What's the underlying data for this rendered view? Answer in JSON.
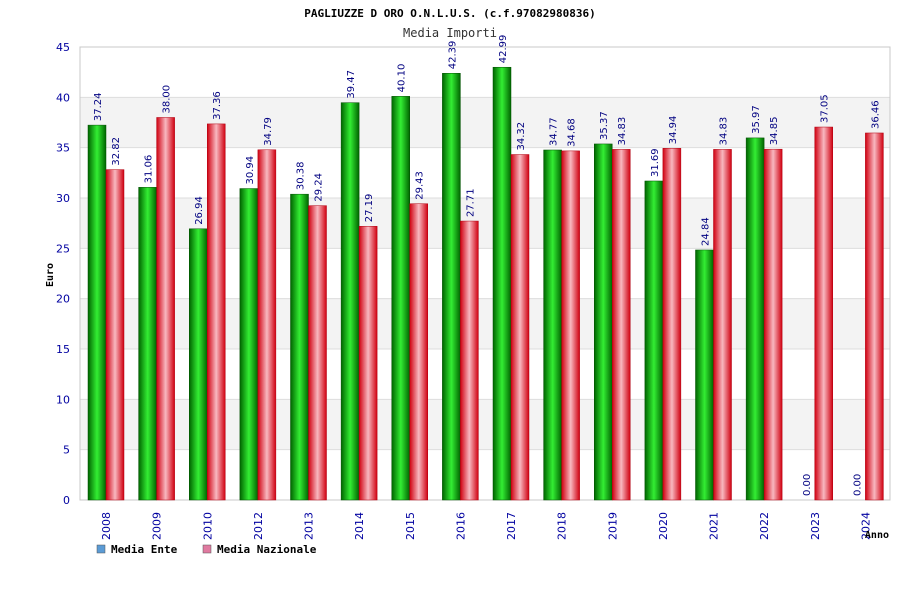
{
  "chart_data": {
    "type": "bar",
    "title": "PAGLIUZZE D ORO O.N.L.U.S. (c.f.97082980836)",
    "subtitle": "Media Importi",
    "xlabel": "Anno",
    "ylabel": "Euro",
    "ylim": [
      0,
      45
    ],
    "yticks": [
      0,
      5,
      10,
      15,
      20,
      25,
      30,
      35,
      40,
      45
    ],
    "grid": "horizontal bands",
    "legend_position": "bottom-left",
    "categories": [
      "2008",
      "2009",
      "2010",
      "2012",
      "2013",
      "2014",
      "2015",
      "2016",
      "2017",
      "2018",
      "2019",
      "2020",
      "2021",
      "2022",
      "2023",
      "2024"
    ],
    "series": [
      {
        "name": "Media Ente",
        "color": "#00b000",
        "legend_color": "#5b9bd5",
        "values": [
          37.24,
          31.06,
          26.94,
          30.94,
          30.38,
          39.47,
          40.1,
          42.39,
          42.99,
          34.77,
          35.37,
          31.69,
          24.84,
          35.97,
          0.0,
          0.0
        ],
        "labels": [
          "37.24",
          "31.06",
          "26.94",
          "30.94",
          "30.38",
          "39.47",
          "40.10",
          "42.39",
          "42.99",
          "34.77",
          "35.37",
          "31.69",
          "24.84",
          "35.97",
          "0.00",
          "0.00"
        ]
      },
      {
        "name": "Media Nazionale",
        "color": "#e8202a",
        "legend_color": "#e07aa0",
        "values": [
          32.82,
          38.0,
          37.36,
          34.79,
          29.24,
          27.19,
          29.43,
          27.71,
          34.32,
          34.68,
          34.83,
          34.94,
          34.83,
          34.85,
          37.05,
          36.46
        ],
        "labels": [
          "32.82",
          "38.00",
          "37.36",
          "34.79",
          "29.24",
          "27.19",
          "29.43",
          "27.71",
          "34.32",
          "34.68",
          "34.83",
          "34.94",
          "34.83",
          "34.85",
          "37.05",
          "36.46"
        ]
      }
    ]
  }
}
